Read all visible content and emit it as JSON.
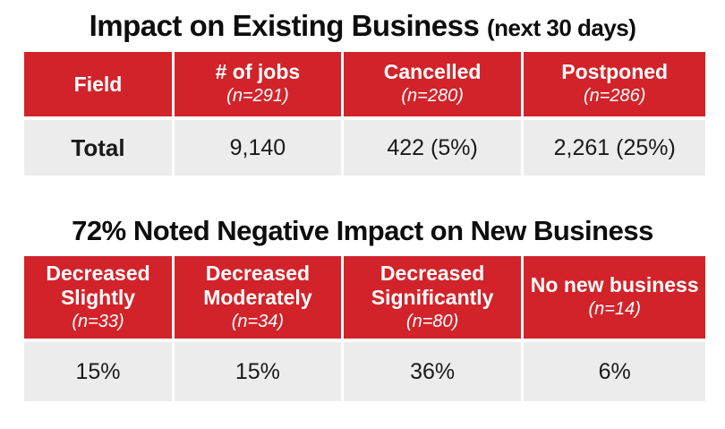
{
  "colors": {
    "header_red": "#d2232a",
    "row_gray": "#ececec",
    "header_text": "#ffffff",
    "title_text": "#0d0d0d",
    "background": "#ffffff"
  },
  "section1": {
    "title_main": "Impact on Existing Business",
    "title_paren": "(next 30 days)",
    "table": {
      "columns": [
        {
          "label": "Field"
        },
        {
          "label": "# of jobs",
          "n": "(n=291)"
        },
        {
          "label": "Cancelled",
          "n": "(n=280)"
        },
        {
          "label": "Postponed",
          "n": "(n=286)"
        }
      ],
      "row": {
        "label": "Total",
        "values": [
          "9,140",
          "422 (5%)",
          "2,261 (25%)"
        ]
      }
    }
  },
  "section2": {
    "title": "72% Noted Negative Impact on New Business",
    "table": {
      "columns": [
        {
          "label": "Decreased Slightly",
          "n": "(n=33)"
        },
        {
          "label": "Decreased Moderately",
          "n": "(n=34)"
        },
        {
          "label": "Decreased Significantly",
          "n": "(n=80)"
        },
        {
          "label": "No new business",
          "n": "(n=14)"
        }
      ],
      "values": [
        "15%",
        "15%",
        "36%",
        "6%"
      ]
    }
  },
  "chart_data": [
    {
      "type": "table",
      "title": "Impact on Existing Business (next 30 days)",
      "columns": [
        "Field",
        "# of jobs (n=291)",
        "Cancelled (n=280)",
        "Postponed (n=286)"
      ],
      "rows": [
        [
          "Total",
          "9,140",
          "422 (5%)",
          "2,261 (25%)"
        ]
      ]
    },
    {
      "type": "table",
      "title": "72% Noted Negative Impact on New Business",
      "columns": [
        "Decreased Slightly (n=33)",
        "Decreased Moderately (n=34)",
        "Decreased Significantly (n=80)",
        "No new business (n=14)"
      ],
      "rows": [
        [
          "15%",
          "15%",
          "36%",
          "6%"
        ]
      ]
    }
  ]
}
